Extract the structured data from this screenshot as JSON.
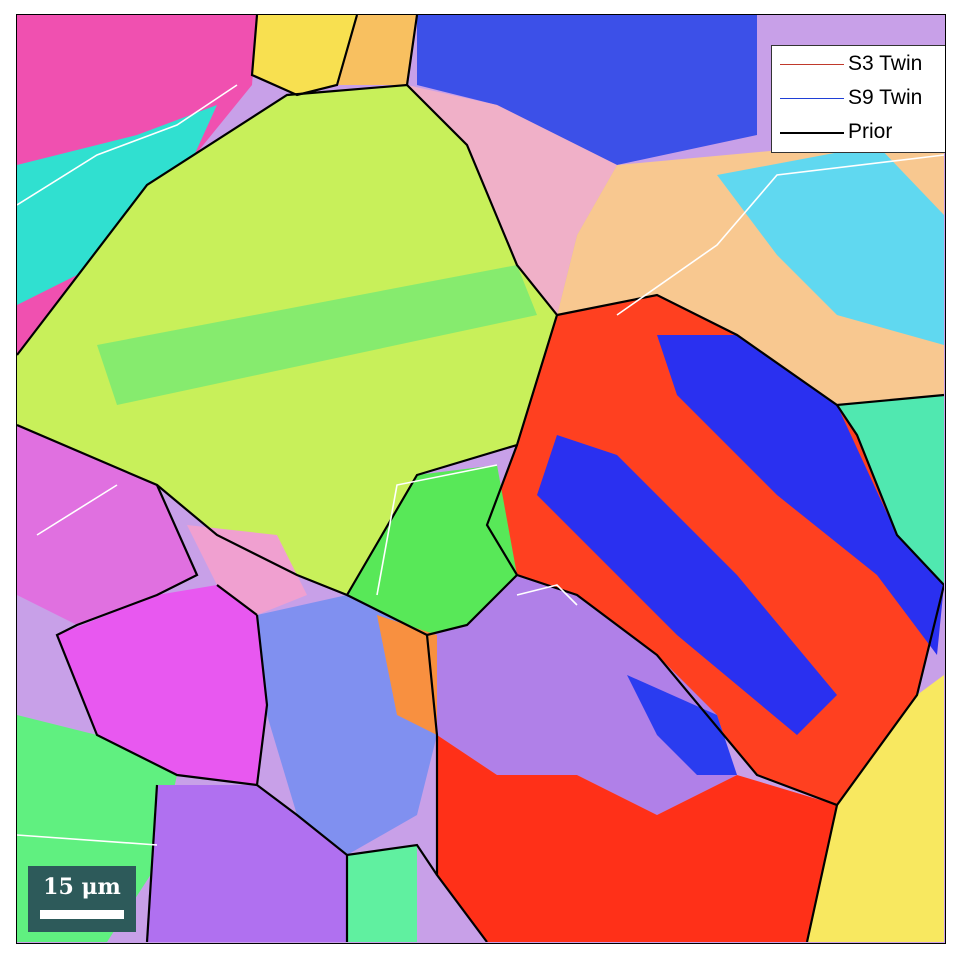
{
  "legend": {
    "items": [
      {
        "label": "S3 Twin",
        "color": "#c0392b"
      },
      {
        "label": "S9 Twin",
        "color": "#1f3fd6"
      },
      {
        "label": "Prior",
        "color": "#000000"
      }
    ]
  },
  "scale_bar": {
    "label": "15 μm"
  },
  "colors": {
    "red": "#ff3b1f",
    "blue": "#2a2af0",
    "magenta": "#f06ae8",
    "violet": "#b070f0",
    "lime": "#c8f85a",
    "green": "#5ef05a",
    "cyan": "#40e8e8",
    "yellow": "#f8e860",
    "orange": "#f8b060",
    "pink": "#f8a0c8",
    "lavender": "#c8a0e8",
    "pale": "#e8d8e0"
  }
}
